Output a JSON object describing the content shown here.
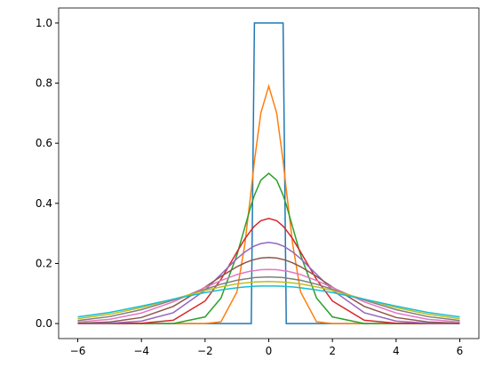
{
  "chart_data": {
    "type": "line",
    "x": [
      -6,
      -5,
      -4,
      -3,
      -2,
      -1.5,
      -1,
      -0.75,
      -0.55,
      -0.45,
      -0.25,
      0,
      0.25,
      0.45,
      0.55,
      0.75,
      1,
      1.5,
      2,
      3,
      4,
      5,
      6
    ],
    "series": [
      {
        "color": "#1f77b4",
        "values": [
          0,
          0,
          0,
          0,
          0,
          0,
          0,
          0,
          0,
          1,
          1,
          1,
          1,
          1,
          0,
          0,
          0,
          0,
          0,
          0,
          0,
          0,
          0
        ]
      },
      {
        "color": "#ff7f0e",
        "values": [
          0,
          0,
          0,
          0,
          0,
          0.006,
          0.105,
          0.265,
          0.446,
          0.541,
          0.7,
          0.79,
          0.7,
          0.541,
          0.446,
          0.265,
          0.105,
          0.006,
          0,
          0,
          0,
          0,
          0
        ]
      },
      {
        "color": "#2ca02c",
        "values": [
          0,
          0,
          0,
          0,
          0.022,
          0.085,
          0.228,
          0.321,
          0.395,
          0.427,
          0.477,
          0.5,
          0.477,
          0.427,
          0.395,
          0.321,
          0.228,
          0.085,
          0.022,
          0,
          0,
          0,
          0
        ]
      },
      {
        "color": "#d62728",
        "values": [
          0,
          0,
          0.001,
          0.011,
          0.075,
          0.147,
          0.238,
          0.282,
          0.311,
          0.324,
          0.342,
          0.35,
          0.342,
          0.324,
          0.311,
          0.282,
          0.238,
          0.147,
          0.075,
          0.011,
          0.001,
          0,
          0
        ]
      },
      {
        "color": "#9467bd",
        "values": [
          0,
          0.001,
          0.008,
          0.036,
          0.111,
          0.164,
          0.216,
          0.238,
          0.252,
          0.258,
          0.266,
          0.27,
          0.266,
          0.258,
          0.252,
          0.238,
          0.216,
          0.164,
          0.111,
          0.036,
          0.008,
          0.001,
          0
        ]
      },
      {
        "color": "#8c564b",
        "values": [
          0.001,
          0.005,
          0.02,
          0.057,
          0.121,
          0.157,
          0.189,
          0.202,
          0.21,
          0.213,
          0.218,
          0.22,
          0.218,
          0.213,
          0.21,
          0.202,
          0.189,
          0.157,
          0.121,
          0.057,
          0.02,
          0.005,
          0.001
        ]
      },
      {
        "color": "#e377c2",
        "values": [
          0.005,
          0.014,
          0.035,
          0.072,
          0.12,
          0.143,
          0.163,
          0.17,
          0.175,
          0.176,
          0.179,
          0.18,
          0.179,
          0.176,
          0.175,
          0.17,
          0.163,
          0.143,
          0.12,
          0.072,
          0.035,
          0.014,
          0.005
        ]
      },
      {
        "color": "#7f7f7f",
        "values": [
          0.01,
          0.023,
          0.046,
          0.078,
          0.114,
          0.131,
          0.144,
          0.148,
          0.151,
          0.153,
          0.154,
          0.155,
          0.154,
          0.153,
          0.151,
          0.148,
          0.144,
          0.131,
          0.114,
          0.078,
          0.046,
          0.023,
          0.01
        ]
      },
      {
        "color": "#bcbd22",
        "values": [
          0.016,
          0.031,
          0.053,
          0.081,
          0.11,
          0.122,
          0.132,
          0.135,
          0.137,
          0.138,
          0.139,
          0.14,
          0.139,
          0.138,
          0.137,
          0.135,
          0.132,
          0.122,
          0.11,
          0.081,
          0.053,
          0.031,
          0.016
        ]
      },
      {
        "color": "#17becf",
        "values": [
          0.022,
          0.037,
          0.058,
          0.081,
          0.103,
          0.112,
          0.119,
          0.122,
          0.123,
          0.124,
          0.125,
          0.125,
          0.125,
          0.124,
          0.123,
          0.122,
          0.119,
          0.112,
          0.103,
          0.081,
          0.058,
          0.037,
          0.022
        ]
      }
    ],
    "xlim": [
      -6.6,
      6.6
    ],
    "ylim": [
      -0.05,
      1.05
    ],
    "xticks": [
      {
        "value": -6,
        "label": "−6"
      },
      {
        "value": -4,
        "label": "−4"
      },
      {
        "value": -2,
        "label": "−2"
      },
      0,
      2,
      4,
      6
    ],
    "yticks": [
      {
        "value": 0,
        "label": "0.0"
      },
      {
        "value": 0.2,
        "label": "0.2"
      },
      {
        "value": 0.4,
        "label": "0.4"
      },
      {
        "value": 0.6,
        "label": "0.6"
      },
      {
        "value": 0.8,
        "label": "0.8"
      },
      {
        "value": 1,
        "label": "1.0"
      }
    ]
  }
}
